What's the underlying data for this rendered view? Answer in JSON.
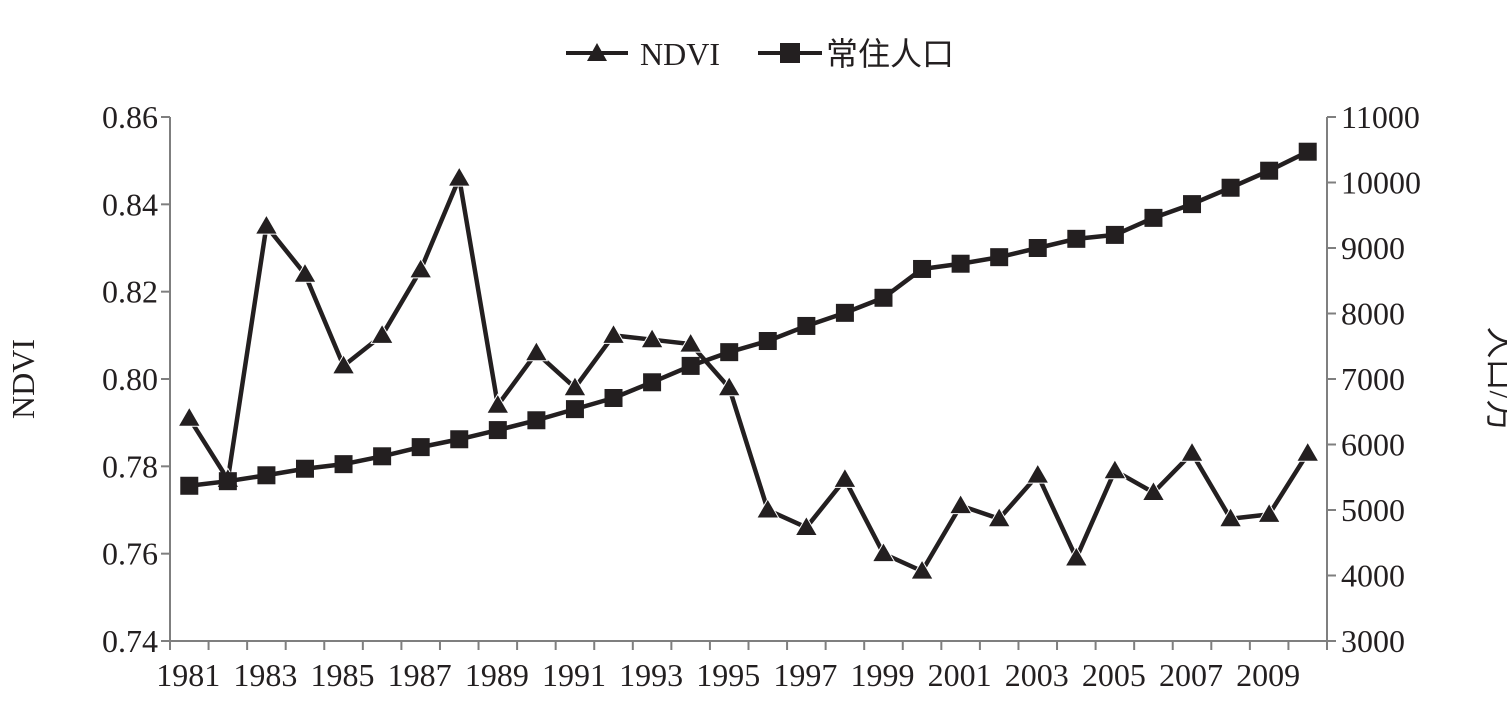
{
  "chart_data": {
    "type": "line",
    "title": "",
    "legend": {
      "position": "top-center",
      "entries": [
        "NDVI",
        "常住人口"
      ]
    },
    "x": [
      1981,
      1982,
      1983,
      1984,
      1985,
      1986,
      1987,
      1988,
      1989,
      1990,
      1991,
      1992,
      1993,
      1994,
      1995,
      1996,
      1997,
      1998,
      1999,
      2000,
      2001,
      2002,
      2003,
      2004,
      2005,
      2006,
      2007,
      2008,
      2009,
      2010
    ],
    "x_tick_labels": [
      "1981",
      "1983",
      "1985",
      "1987",
      "1989",
      "1991",
      "1993",
      "1995",
      "1997",
      "1999",
      "2001",
      "2003",
      "2005",
      "2007",
      "2009"
    ],
    "ylabel": "NDVI",
    "ylim": [
      0.74,
      0.86
    ],
    "y_ticks": [
      "0.74",
      "0.76",
      "0.78",
      "0.80",
      "0.82",
      "0.84",
      "0.86"
    ],
    "y2label": "人口/万",
    "y2lim": [
      3000,
      11000
    ],
    "y2_ticks": [
      "3000",
      "4000",
      "5000",
      "6000",
      "7000",
      "8000",
      "9000",
      "10000",
      "11000"
    ],
    "grid": false,
    "series": [
      {
        "name": "NDVI",
        "axis": "left",
        "marker": "triangle",
        "values": [
          0.791,
          0.777,
          0.835,
          0.824,
          0.803,
          0.81,
          0.825,
          0.846,
          0.794,
          0.806,
          0.798,
          0.81,
          0.809,
          0.808,
          0.798,
          0.77,
          0.766,
          0.777,
          0.76,
          0.756,
          0.771,
          0.768,
          0.778,
          0.759,
          0.779,
          0.774,
          0.783,
          0.768,
          0.769,
          0.783
        ]
      },
      {
        "name": "常住人口",
        "axis": "right",
        "marker": "square",
        "values": [
          5370,
          5440,
          5530,
          5630,
          5700,
          5820,
          5960,
          6080,
          6220,
          6370,
          6540,
          6710,
          6950,
          7200,
          7410,
          7580,
          7810,
          8010,
          8240,
          8680,
          8760,
          8860,
          9000,
          9140,
          9200,
          9460,
          9670,
          9920,
          10180,
          10470
        ]
      }
    ]
  }
}
